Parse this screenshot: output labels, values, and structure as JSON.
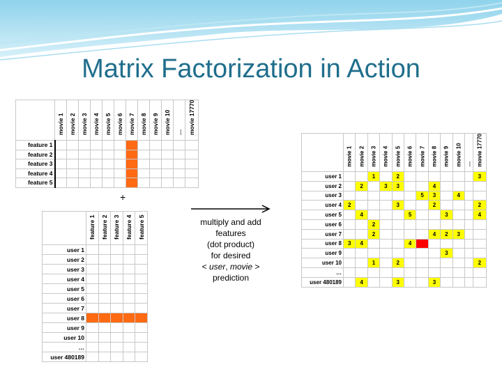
{
  "title": "Matrix Factorization in Action",
  "plus": "+",
  "caption": {
    "line1": "multiply and add",
    "line2": "features",
    "line3": "(dot product)",
    "line4": "for desired",
    "line5_prefix": "< ",
    "line5_user": "user",
    "line5_sep": ", ",
    "line5_movie": "movie",
    "line5_suffix": " >",
    "line6": "prediction"
  },
  "colors": {
    "title": "#1f6e8c",
    "highlight": "#ff6a13",
    "rating": "#ffff00",
    "predicted": "#ff0000"
  },
  "movie_features": {
    "columns": [
      "movie 1",
      "movie 2",
      "movie 3",
      "movie 4",
      "movie 5",
      "movie 6",
      "movie 7",
      "movie 8",
      "movie 9",
      "movie 10",
      "…",
      "movie 17770"
    ],
    "rows": [
      "feature 1",
      "feature 2",
      "feature 3",
      "feature 4",
      "feature 5"
    ],
    "highlight_column_index": 6
  },
  "user_features": {
    "columns": [
      "feature 1",
      "feature 2",
      "feature 3",
      "feature 4",
      "feature 5"
    ],
    "rows": [
      "user 1",
      "user 2",
      "user 3",
      "user 4",
      "user 5",
      "user 6",
      "user 7",
      "user 8",
      "user 9",
      "user 10",
      "…",
      "user 480189"
    ],
    "highlight_row_index": 7
  },
  "ratings": {
    "columns": [
      "movie 1",
      "movie 2",
      "movie 3",
      "movie 4",
      "movie 5",
      "movie 6",
      "movie 7",
      "movie 8",
      "movie 9",
      "movie 10",
      "…",
      "movie 17770"
    ],
    "rows": [
      {
        "label": "user 1",
        "cells": [
          "",
          "",
          "1",
          "",
          "2",
          "",
          "",
          "",
          "",
          "",
          "",
          "3"
        ]
      },
      {
        "label": "user 2",
        "cells": [
          "",
          "2",
          "",
          "3",
          "3",
          "",
          "",
          "4",
          "",
          "",
          "",
          ""
        ]
      },
      {
        "label": "user 3",
        "cells": [
          "",
          "",
          "",
          "",
          "",
          "",
          "5",
          "3",
          "",
          "4",
          "",
          ""
        ]
      },
      {
        "label": "user 4",
        "cells": [
          "2",
          "",
          "",
          "",
          "3",
          "",
          "",
          "2",
          "",
          "",
          "",
          "2"
        ]
      },
      {
        "label": "user 5",
        "cells": [
          "",
          "4",
          "",
          "",
          "",
          "5",
          "",
          "",
          "3",
          "",
          "",
          "4"
        ]
      },
      {
        "label": "user 6",
        "cells": [
          "",
          "",
          "2",
          "",
          "",
          "",
          "",
          "",
          "",
          "",
          "",
          ""
        ]
      },
      {
        "label": "user 7",
        "cells": [
          "",
          "",
          "2",
          "",
          "",
          "",
          "",
          "4",
          "2",
          "3",
          "",
          ""
        ]
      },
      {
        "label": "user 8",
        "cells": [
          "3",
          "4",
          "",
          "",
          "",
          "4",
          "?",
          "",
          "",
          "",
          "",
          ""
        ]
      },
      {
        "label": "user 9",
        "cells": [
          "",
          "",
          "",
          "",
          "",
          "",
          "",
          "",
          "3",
          "",
          "",
          ""
        ]
      },
      {
        "label": "user 10",
        "cells": [
          "",
          "",
          "1",
          "",
          "2",
          "",
          "",
          "",
          "",
          "",
          "",
          "2"
        ]
      },
      {
        "label": "…",
        "cells": [
          "",
          "",
          "",
          "",
          "",
          "",
          "",
          "",
          "",
          "",
          "",
          ""
        ]
      },
      {
        "label": "user 480189",
        "cells": [
          "",
          "4",
          "",
          "",
          "3",
          "",
          "",
          "3",
          "",
          "",
          "",
          ""
        ]
      }
    ],
    "predicted_cell": {
      "row": 7,
      "col": 6
    }
  }
}
